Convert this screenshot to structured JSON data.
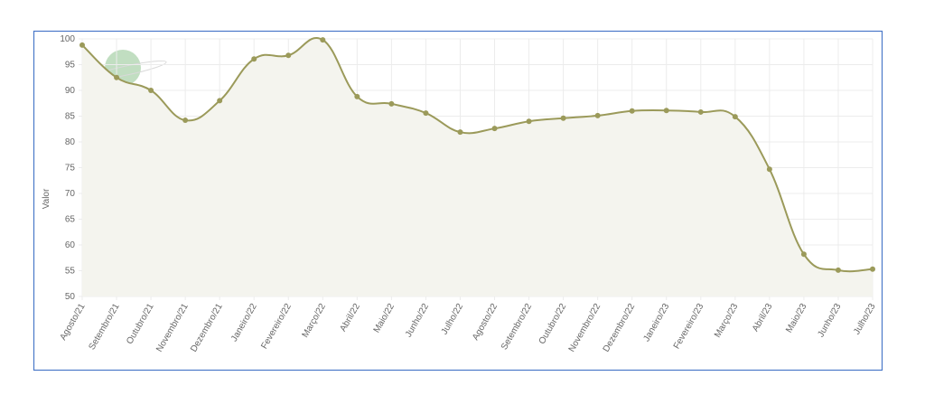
{
  "chart_data": {
    "type": "line",
    "logo": "cepea",
    "y_label": "Valor",
    "categories": [
      "Agosto/21",
      "Setembro/21",
      "Outubro/21",
      "Novembro/21",
      "Dezembro/21",
      "Janeiro/22",
      "Fevereiro/22",
      "Março/22",
      "Abril/22",
      "Maio/22",
      "Junho/22",
      "Julho/22",
      "Agosto/22",
      "Setembro/22",
      "Outubro/22",
      "Novembro/22",
      "Dezembro/22",
      "Janeiro/23",
      "Fevereiro/23",
      "Março/23",
      "Abril/23",
      "Maio/23",
      "Junho/23",
      "Julho/23"
    ],
    "values": [
      98.8,
      92.5,
      90,
      84.2,
      88,
      96.1,
      96.8,
      99.8,
      88.8,
      87.4,
      85.6,
      81.9,
      82.6,
      84,
      84.6,
      85.1,
      86,
      86.1,
      85.8,
      84.9,
      74.7,
      58.2,
      55.1,
      55.3
    ],
    "color": "#9b9a5a",
    "fill": "#f4f4ee",
    "ylim": [
      50,
      100
    ],
    "yticks": [
      50,
      55,
      60,
      65,
      70,
      75,
      80,
      85,
      90,
      95,
      100
    ],
    "grid": true
  }
}
